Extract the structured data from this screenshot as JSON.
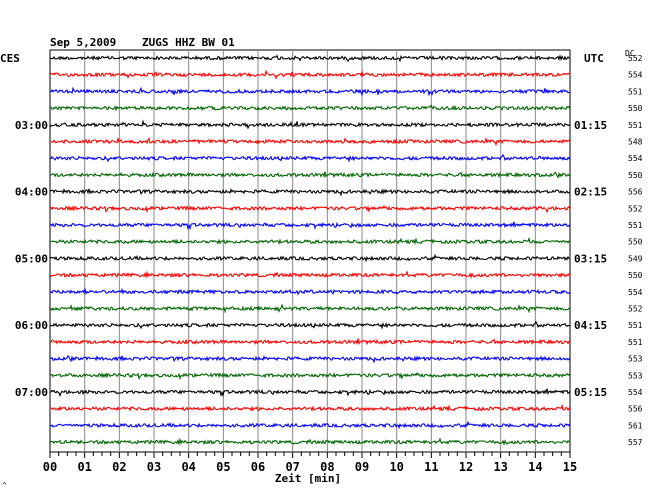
{
  "header": {
    "date": "Sep 5,2009",
    "station": "ZUGS HHZ BW 01",
    "left_label": "CES",
    "right_label": "UTC",
    "dc_label": "DC"
  },
  "chart_data": {
    "type": "line",
    "title": "Sep 5,2009   ZUGS HHZ BW 01",
    "xlabel": "Zeit [min]",
    "x_ticks": [
      "00",
      "01",
      "02",
      "03",
      "04",
      "05",
      "06",
      "07",
      "08",
      "09",
      "10",
      "11",
      "12",
      "13",
      "14",
      "15"
    ],
    "xlim": [
      0,
      15
    ],
    "grid": true,
    "trace_colors": [
      "#000000",
      "#ff0000",
      "#0000ff",
      "#006600"
    ],
    "left_hour_labels": [
      "03:00",
      "04:00",
      "05:00",
      "06:00",
      "07:00"
    ],
    "right_hour_labels": [
      "01:15",
      "02:15",
      "03:15",
      "04:15",
      "05:15"
    ],
    "hour_label_trace_index": [
      4,
      8,
      12,
      16,
      20
    ],
    "dc_offsets": [
      "552",
      "554",
      "551",
      "550",
      "551",
      "548",
      "554",
      "550",
      "556",
      "552",
      "551",
      "550",
      "549",
      "550",
      "554",
      "552",
      "551",
      "551",
      "553",
      "553",
      "554",
      "556",
      "561",
      "557"
    ],
    "trace_count": 24
  },
  "footer": {
    "corner_mark": "^"
  }
}
